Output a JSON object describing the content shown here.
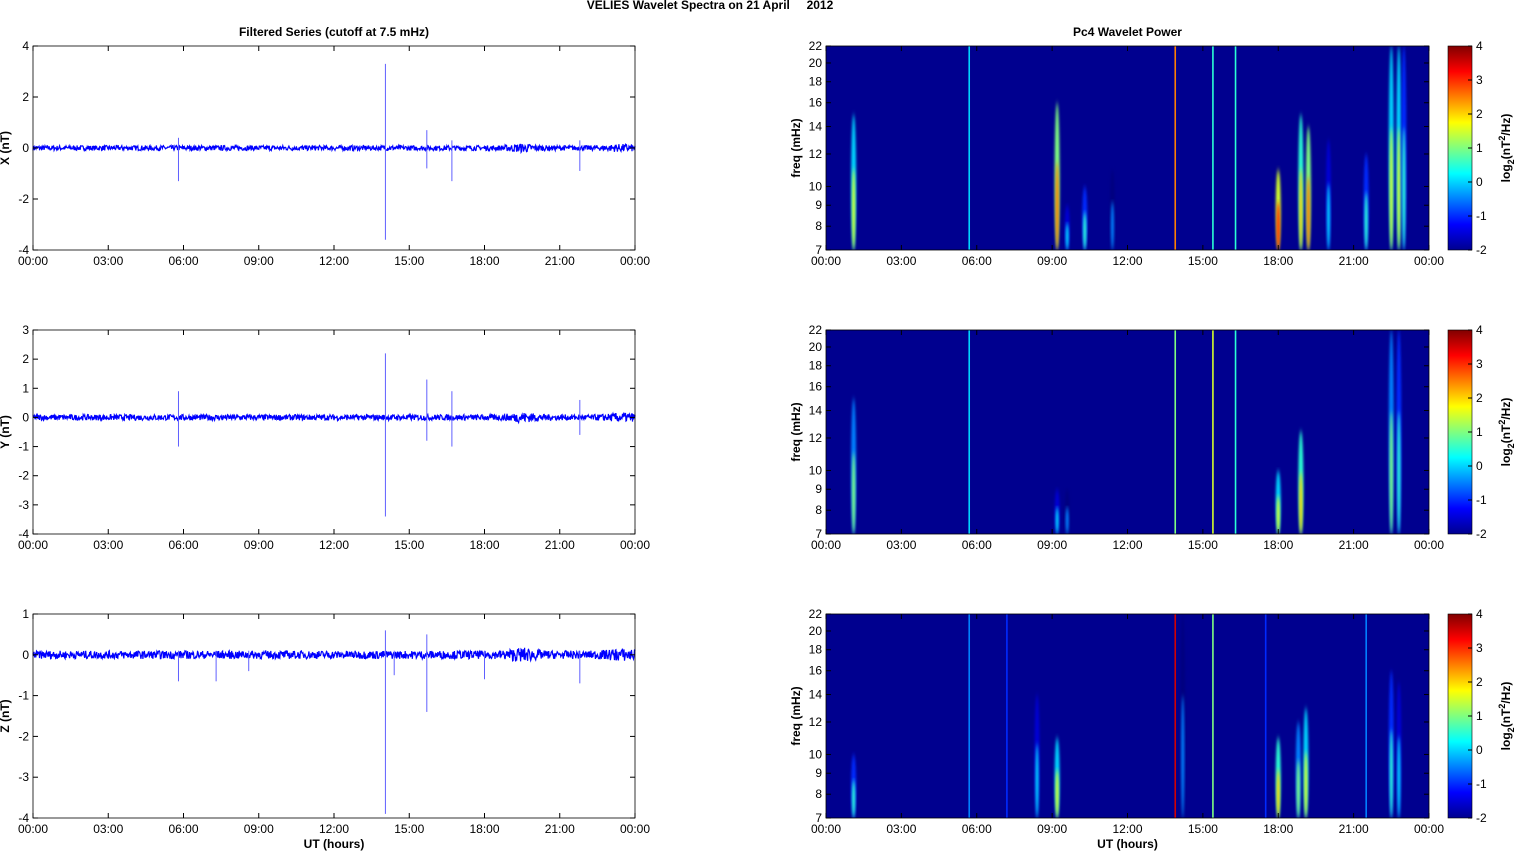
{
  "title": "VELIES Wavelet Spectra on 21 April     2012",
  "chart_data": [
    {
      "type": "line",
      "title": "Filtered Series (cutoff at 7.5 mHz)",
      "ylabel": "X (nT)",
      "xlabel": "",
      "ylim": [
        -4,
        4
      ],
      "yticks": [
        "-4",
        "-2",
        "0",
        "2",
        "4"
      ],
      "ytick_values": [
        -4,
        -2,
        0,
        2,
        4
      ],
      "xticks": [
        "00:00",
        "03:00",
        "06:00",
        "09:00",
        "12:00",
        "15:00",
        "18:00",
        "21:00",
        "00:00"
      ],
      "xlim_hours": [
        0,
        24
      ],
      "noise_nT": 0.1,
      "spikes": [
        [
          5.8,
          -1.3,
          0.4
        ],
        [
          14.05,
          -3.6,
          3.3
        ],
        [
          15.7,
          -0.8,
          0.7
        ],
        [
          16.7,
          -1.3,
          0.3
        ],
        [
          21.8,
          -0.9,
          0.3
        ]
      ]
    },
    {
      "type": "line",
      "title": "",
      "ylabel": "Y (nT)",
      "xlabel": "",
      "ylim": [
        -4,
        3
      ],
      "yticks": [
        "-4",
        "-3",
        "-2",
        "-1",
        "0",
        "1",
        "2",
        "3"
      ],
      "ytick_values": [
        -4,
        -3,
        -2,
        -1,
        0,
        1,
        2,
        3
      ],
      "xticks": [
        "00:00",
        "03:00",
        "06:00",
        "09:00",
        "12:00",
        "15:00",
        "18:00",
        "21:00",
        "00:00"
      ],
      "xlim_hours": [
        0,
        24
      ],
      "noise_nT": 0.1,
      "spikes": [
        [
          5.8,
          -1,
          0.9
        ],
        [
          14.05,
          -3.4,
          2.2
        ],
        [
          15.7,
          -0.8,
          1.3
        ],
        [
          16.7,
          -1,
          0.9
        ],
        [
          21.8,
          -0.6,
          0.6
        ]
      ]
    },
    {
      "type": "line",
      "title": "",
      "ylabel": "Z (nT)",
      "xlabel": "UT (hours)",
      "ylim": [
        -4,
        1
      ],
      "yticks": [
        "-4",
        "-3",
        "-2",
        "-1",
        "0",
        "1"
      ],
      "ytick_values": [
        -4,
        -3,
        -2,
        -1,
        0,
        1
      ],
      "xticks": [
        "00:00",
        "03:00",
        "06:00",
        "09:00",
        "12:00",
        "15:00",
        "18:00",
        "21:00",
        "00:00"
      ],
      "xlim_hours": [
        0,
        24
      ],
      "noise_nT": 0.1,
      "spikes": [
        [
          5.8,
          -0.65,
          0.1
        ],
        [
          7.3,
          -0.65,
          0.1
        ],
        [
          8.6,
          -0.4,
          0.1
        ],
        [
          14.05,
          -3.9,
          0.6
        ],
        [
          14.4,
          -0.5,
          0.1
        ],
        [
          15.7,
          -1.4,
          0.5
        ],
        [
          18.0,
          -0.6,
          0.1
        ],
        [
          21.8,
          -0.7,
          0.1
        ]
      ]
    },
    {
      "type": "heatmap",
      "title": "Pc4 Wavelet Power",
      "ylabel": "freq (mHz)",
      "xlabel": "",
      "ylim": [
        7,
        22
      ],
      "yscale": "log",
      "yticks": [
        "7",
        "8",
        "9",
        "10",
        "12",
        "14",
        "16",
        "18",
        "20",
        "22"
      ],
      "ytick_values": [
        7,
        8,
        9,
        10,
        12,
        14,
        16,
        18,
        20,
        22
      ],
      "xticks": [
        "00:00",
        "03:00",
        "06:00",
        "09:00",
        "12:00",
        "15:00",
        "18:00",
        "21:00",
        "00:00"
      ],
      "clim": [
        -2,
        4
      ],
      "cticks": [
        "-2",
        "-1",
        "0",
        "1",
        "2",
        "3",
        "4"
      ],
      "clabel": "log2(nT2/Hz)",
      "events": [
        [
          1.1,
          15,
          1.5
        ],
        [
          5.7,
          22,
          0,
          1
        ],
        [
          9.2,
          16,
          2.5
        ],
        [
          9.6,
          9,
          0
        ],
        [
          10.3,
          10,
          0.5
        ],
        [
          11.4,
          11,
          -0.5
        ],
        [
          13.9,
          22,
          2.5,
          1
        ],
        [
          15.4,
          22,
          0.5,
          1
        ],
        [
          16.3,
          22,
          0.5,
          1
        ],
        [
          18.0,
          11,
          3
        ],
        [
          18.9,
          15,
          2
        ],
        [
          19.2,
          14,
          2.5
        ],
        [
          20.0,
          13,
          0
        ],
        [
          21.5,
          12,
          0.5
        ],
        [
          22.5,
          22,
          1.5
        ],
        [
          22.8,
          22,
          1.5
        ],
        [
          23.0,
          22,
          0.5
        ]
      ]
    },
    {
      "type": "heatmap",
      "title": "",
      "ylabel": "freq (mHz)",
      "xlabel": "",
      "ylim": [
        7,
        22
      ],
      "yscale": "log",
      "yticks": [
        "7",
        "8",
        "9",
        "10",
        "12",
        "14",
        "16",
        "18",
        "20",
        "22"
      ],
      "ytick_values": [
        7,
        8,
        9,
        10,
        12,
        14,
        16,
        18,
        20,
        22
      ],
      "xticks": [
        "00:00",
        "03:00",
        "06:00",
        "09:00",
        "12:00",
        "15:00",
        "18:00",
        "21:00",
        "00:00"
      ],
      "clim": [
        -2,
        4
      ],
      "cticks": [
        "-2",
        "-1",
        "0",
        "1",
        "2",
        "3",
        "4"
      ],
      "clabel": "log2(nT2/Hz)",
      "events": [
        [
          1.1,
          15,
          1
        ],
        [
          5.7,
          22,
          0,
          1
        ],
        [
          9.2,
          9,
          0
        ],
        [
          9.6,
          9,
          -0.5
        ],
        [
          13.9,
          22,
          1,
          1
        ],
        [
          15.4,
          22,
          1.5,
          1
        ],
        [
          16.3,
          22,
          0.5,
          1
        ],
        [
          18.0,
          10,
          1.5
        ],
        [
          18.9,
          12.5,
          2
        ],
        [
          22.5,
          22,
          1
        ],
        [
          22.8,
          22,
          0.5
        ]
      ]
    },
    {
      "type": "heatmap",
      "title": "",
      "ylabel": "freq (mHz)",
      "xlabel": "UT (hours)",
      "ylim": [
        7,
        22
      ],
      "yscale": "log",
      "yticks": [
        "7",
        "8",
        "9",
        "10",
        "12",
        "14",
        "16",
        "18",
        "20",
        "22"
      ],
      "ytick_values": [
        7,
        8,
        9,
        10,
        12,
        14,
        16,
        18,
        20,
        22
      ],
      "xticks": [
        "00:00",
        "03:00",
        "06:00",
        "09:00",
        "12:00",
        "15:00",
        "18:00",
        "21:00",
        "00:00"
      ],
      "clim": [
        -2,
        4
      ],
      "cticks": [
        "-2",
        "-1",
        "0",
        "1",
        "2",
        "3",
        "4"
      ],
      "clabel": "log2(nT2/Hz)",
      "events": [
        [
          1.1,
          10,
          0.5
        ],
        [
          5.7,
          22,
          -0.5,
          1
        ],
        [
          7.2,
          22,
          -1,
          1
        ],
        [
          8.4,
          14,
          0
        ],
        [
          9.2,
          11,
          1.5
        ],
        [
          13.9,
          22,
          3.5,
          1
        ],
        [
          14.2,
          22,
          -0.5
        ],
        [
          15.4,
          22,
          1,
          1
        ],
        [
          17.5,
          22,
          -1,
          1
        ],
        [
          18.0,
          11,
          2
        ],
        [
          18.8,
          12,
          1
        ],
        [
          19.1,
          13,
          1.5
        ],
        [
          21.5,
          22,
          -0.5,
          1
        ],
        [
          22.5,
          16,
          0.5
        ],
        [
          22.8,
          15,
          0
        ]
      ]
    }
  ]
}
